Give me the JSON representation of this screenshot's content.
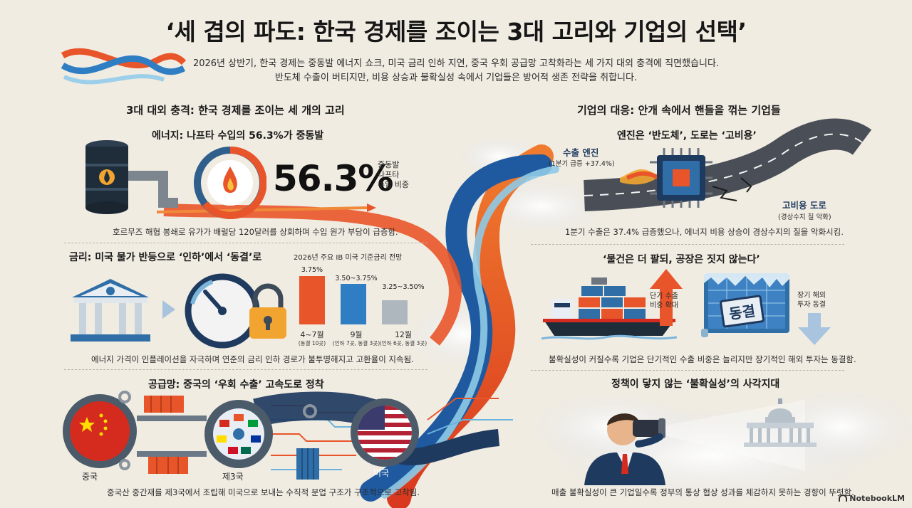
{
  "title": "‘세 겹의 파도: 한국 경제를 조이는 3대 고리와 기업의 선택’",
  "subtitle": [
    "2026년 상반기, 한국 경제는 중동발 에너지 쇼크, 미국 금리 인하 지연, 중국 우회 공급망 고착화라는 세 가지 대외 충격에 직면했습니다.",
    "반도체 수출이 버티지만, 비용 상승과 불확실성 속에서 기업들은 방어적 생존 전략을 취합니다."
  ],
  "left": {
    "heading": "3대 대외 충격: 한국 경제를 조이는 세 개의 고리",
    "energy": {
      "heading": "에너지: 나프타 수입의 56.3%가 중동발",
      "big_value": "56.3%",
      "big_value_number": 56.3,
      "label_lines": [
        "중동발",
        "나프타",
        "수입 비중"
      ],
      "caption": "호르무즈 해협 봉쇄로 유가가 배럴당 120달러를 상회하며 수입 원가 부담이 급증함."
    },
    "rates": {
      "heading": "금리: 미국 물가 반등으로 ‘인하’에서 ‘동결’로",
      "chart_title": "2026년 주요 IB 미국 기준금리 전망",
      "caption": "에너지 가격이 인플레이션을 자극하며 연준의 금리 인하 경로가 불투명해지고 고환율이 지속됨."
    },
    "supply": {
      "heading": "공급망: 중국의 ‘우회 수출’ 고속도로 정착",
      "node_china": "중국",
      "node_third": "제3국",
      "node_usa": "미국",
      "caption": "중국산 중간재를 제3국에서 조립해 미국으로 보내는 수직적 분업 구조가 구조적으로 고착됨."
    }
  },
  "chart_data": {
    "type": "bar",
    "title": "2026년 주요 IB 미국 기준금리 전망",
    "categories": [
      "4~7월",
      "9월",
      "12월"
    ],
    "category_notes": [
      "(동결 10곳)",
      "(인하 7곳, 동결 3곳)",
      "(인하 6곳, 동결 3곳)"
    ],
    "value_labels": [
      "3.75%",
      "3.50~3.75%",
      "3.25~3.50%"
    ],
    "values": [
      3.75,
      3.625,
      3.375
    ],
    "ylim": [
      3.0,
      3.75
    ],
    "grid": false,
    "colors": [
      "#e9552a",
      "#2f7ec4",
      "#aeb7be"
    ]
  },
  "right": {
    "heading": "기업의 대응: 안개 속에서 핸들을 꺾는 기업들",
    "engine": {
      "heading": "엔진은 ‘반도체’, 도로는 ‘고비용’",
      "export_label": "수출 엔진",
      "export_note": "(1분기 급증 +37.4%)",
      "road_label": "고비용 도로",
      "road_note": "(경상수지 질 악화)",
      "caption": "1분기 수출은 37.4% 급증했으나, 에너지 비용 상승이 경상수지의 질을 악화시킴."
    },
    "sell": {
      "heading": "‘물건은 더 팔되, 공장은 짓지 않는다’",
      "up_label": [
        "단기 수출",
        "비중 확대"
      ],
      "stamp": "동결",
      "down_label": [
        "장기 해외",
        "투자 동결"
      ],
      "caption": "불확실성이 커질수록 기업은 단기적인 수출 비중은 늘리지만 장기적인 해외 투자는 동결함."
    },
    "policy": {
      "heading": "정책이 닿지 않는 ‘불확실성’의 사각지대",
      "caption": "매출 불확실성이 큰 기업일수록 정부의 통상 협상 성과를 체감하지 못하는 경향이 뚜렷함."
    }
  },
  "footer": {
    "logo": "NotebookLM"
  },
  "colors": {
    "orange": "#e9552a",
    "blue": "#2f7ec4",
    "navy": "#1f3a5f",
    "bg": "#f1ece2"
  },
  "icons": [
    "oil-barrel-icon",
    "flame-icon",
    "bank-icon",
    "gauge-icon",
    "padlock-icon",
    "gear-icon",
    "container-icon",
    "chip-icon",
    "cargo-ship-icon",
    "arrow-up-icon",
    "arrow-down-icon",
    "businessman-icon",
    "capitol-icon",
    "notebooklm-icon"
  ]
}
